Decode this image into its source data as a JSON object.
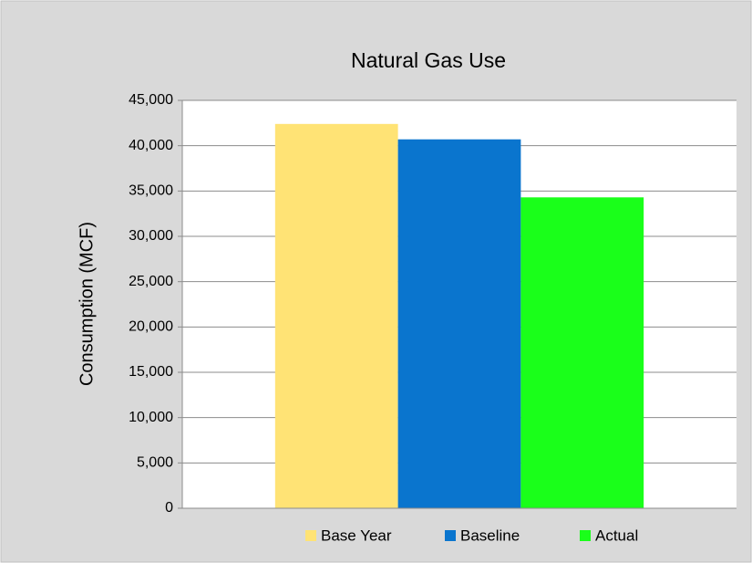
{
  "chart_data": {
    "type": "bar",
    "title": "Natural Gas Use",
    "y_label": "Consumption (MCF)",
    "categories": [
      null
    ],
    "series": [
      {
        "name": "Base Year",
        "color": "#ffe375",
        "values": [
          42400
        ]
      },
      {
        "name": "Baseline",
        "color": "#0a75ce",
        "values": [
          40700
        ]
      },
      {
        "name": "Actual",
        "color": "#1aff1a",
        "values": [
          34300
        ]
      }
    ],
    "ylim": [
      0,
      45000
    ],
    "yticks": [
      0,
      {
        "value": 5000,
        "label": "5,000"
      },
      {
        "value": 10000,
        "label": "10,000"
      },
      {
        "value": 15000,
        "label": "15,000"
      },
      {
        "value": 20000,
        "label": "20,000"
      },
      {
        "value": 25000,
        "label": "25,000"
      },
      {
        "value": 30000,
        "label": "30,000"
      },
      {
        "value": 35000,
        "label": "35,000"
      },
      {
        "value": 40000,
        "label": "40,000"
      },
      {
        "value": 45000,
        "label": "45,000"
      }
    ],
    "grid": true,
    "legend": "bottom"
  }
}
